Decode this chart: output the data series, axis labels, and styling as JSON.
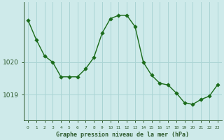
{
  "x": [
    0,
    1,
    2,
    3,
    4,
    5,
    6,
    7,
    8,
    9,
    10,
    11,
    12,
    13,
    14,
    15,
    16,
    17,
    18,
    19,
    20,
    21,
    22,
    23
  ],
  "y": [
    1021.3,
    1020.7,
    1020.2,
    1020.0,
    1019.55,
    1019.55,
    1019.55,
    1019.8,
    1020.15,
    1020.9,
    1021.35,
    1021.45,
    1021.45,
    1021.1,
    1020.0,
    1019.6,
    1019.35,
    1019.3,
    1019.05,
    1018.75,
    1018.7,
    1018.85,
    1018.95,
    1019.3
  ],
  "line_color": "#1a6b1a",
  "marker_color": "#1a6b1a",
  "bg_color": "#ceeaea",
  "grid_color": "#aad4d4",
  "axis_color": "#2d5a2d",
  "label_color": "#2d5a2d",
  "xlabel": "Graphe pression niveau de la mer (hPa)",
  "yticks": [
    1019,
    1020
  ],
  "ylim": [
    1018.2,
    1021.85
  ],
  "xlim": [
    -0.5,
    23.5
  ]
}
